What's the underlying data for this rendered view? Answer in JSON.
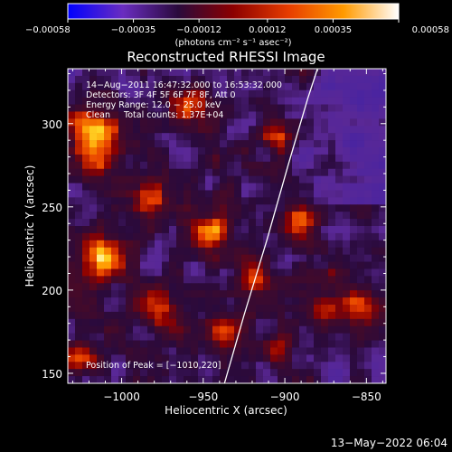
{
  "chart_data": {
    "type": "heatmap",
    "title": "Reconstructed RHESSI Image",
    "xlabel": "Heliocentric X (arcsec)",
    "ylabel": "Heliocentric Y (arcsec)",
    "xlim": [
      -1033,
      -838
    ],
    "ylim": [
      144,
      333
    ],
    "xticks": [
      -1000,
      -950,
      -900,
      -850
    ],
    "xtick_labels": [
      "−1000",
      "−950",
      "−900",
      "−850"
    ],
    "yticks": [
      150,
      200,
      250,
      300
    ],
    "ytick_labels": [
      "150",
      "200",
      "250",
      "300"
    ],
    "colorbar": {
      "range": [
        -0.00058,
        0.00058
      ],
      "ticks": [
        -0.00058,
        -0.00035,
        -0.00012,
        0.00012,
        0.00035,
        0.00058
      ],
      "tick_labels": [
        "−0.00058",
        "−0.00035",
        "−0.00012",
        "0.00012",
        "0.00035",
        "0.00058"
      ],
      "unit_label": "(photons cm⁻² s⁻¹ asec⁻²)",
      "colors": [
        "#0000ff",
        "#6a2dc0",
        "#2a0a3c",
        "#8c0000",
        "#e63c00",
        "#ff9a00",
        "#ffffff"
      ]
    },
    "annotations": [
      "14−Aug−2011 16:47:32.000 to 16:53:32.000",
      "Detectors: 3F 4F 5F 6F 7F 8F, Att 0",
      "Energy Range: 12.0 − 25.0 keV",
      "Clean     Total counts: 1.37E+04"
    ],
    "peak_label": "Position of Peak = [−1010,220]",
    "peak": {
      "x": -1010,
      "y": 220
    },
    "limb_arc": [
      {
        "x": -937,
        "y": 144
      },
      {
        "x": -925,
        "y": 185
      },
      {
        "x": -911,
        "y": 230
      },
      {
        "x": -898,
        "y": 275
      },
      {
        "x": -886,
        "y": 315
      },
      {
        "x": -880,
        "y": 333
      }
    ],
    "hotspots": [
      {
        "x": -1015,
        "y": 290,
        "weight": 1.2,
        "spread": 16
      },
      {
        "x": -1010,
        "y": 220,
        "weight": 1.25,
        "spread": 13
      },
      {
        "x": -1022,
        "y": 160,
        "weight": 0.7,
        "spread": 12
      },
      {
        "x": -985,
        "y": 255,
        "weight": 0.7,
        "spread": 12
      },
      {
        "x": -975,
        "y": 190,
        "weight": 0.9,
        "spread": 12
      },
      {
        "x": -960,
        "y": 310,
        "weight": 0.8,
        "spread": 12
      },
      {
        "x": -945,
        "y": 235,
        "weight": 1.1,
        "spread": 12
      },
      {
        "x": -935,
        "y": 175,
        "weight": 0.75,
        "spread": 12
      },
      {
        "x": -920,
        "y": 205,
        "weight": 0.8,
        "spread": 11
      },
      {
        "x": -905,
        "y": 290,
        "weight": 0.5,
        "spread": 10
      },
      {
        "x": -890,
        "y": 240,
        "weight": 1.0,
        "spread": 11
      },
      {
        "x": -875,
        "y": 190,
        "weight": 0.55,
        "spread": 11
      },
      {
        "x": -855,
        "y": 190,
        "weight": 0.95,
        "spread": 11
      },
      {
        "x": -905,
        "y": 160,
        "weight": 0.5,
        "spread": 10
      }
    ]
  },
  "footer": {
    "timestamp": "13−May−2022 06:04"
  }
}
